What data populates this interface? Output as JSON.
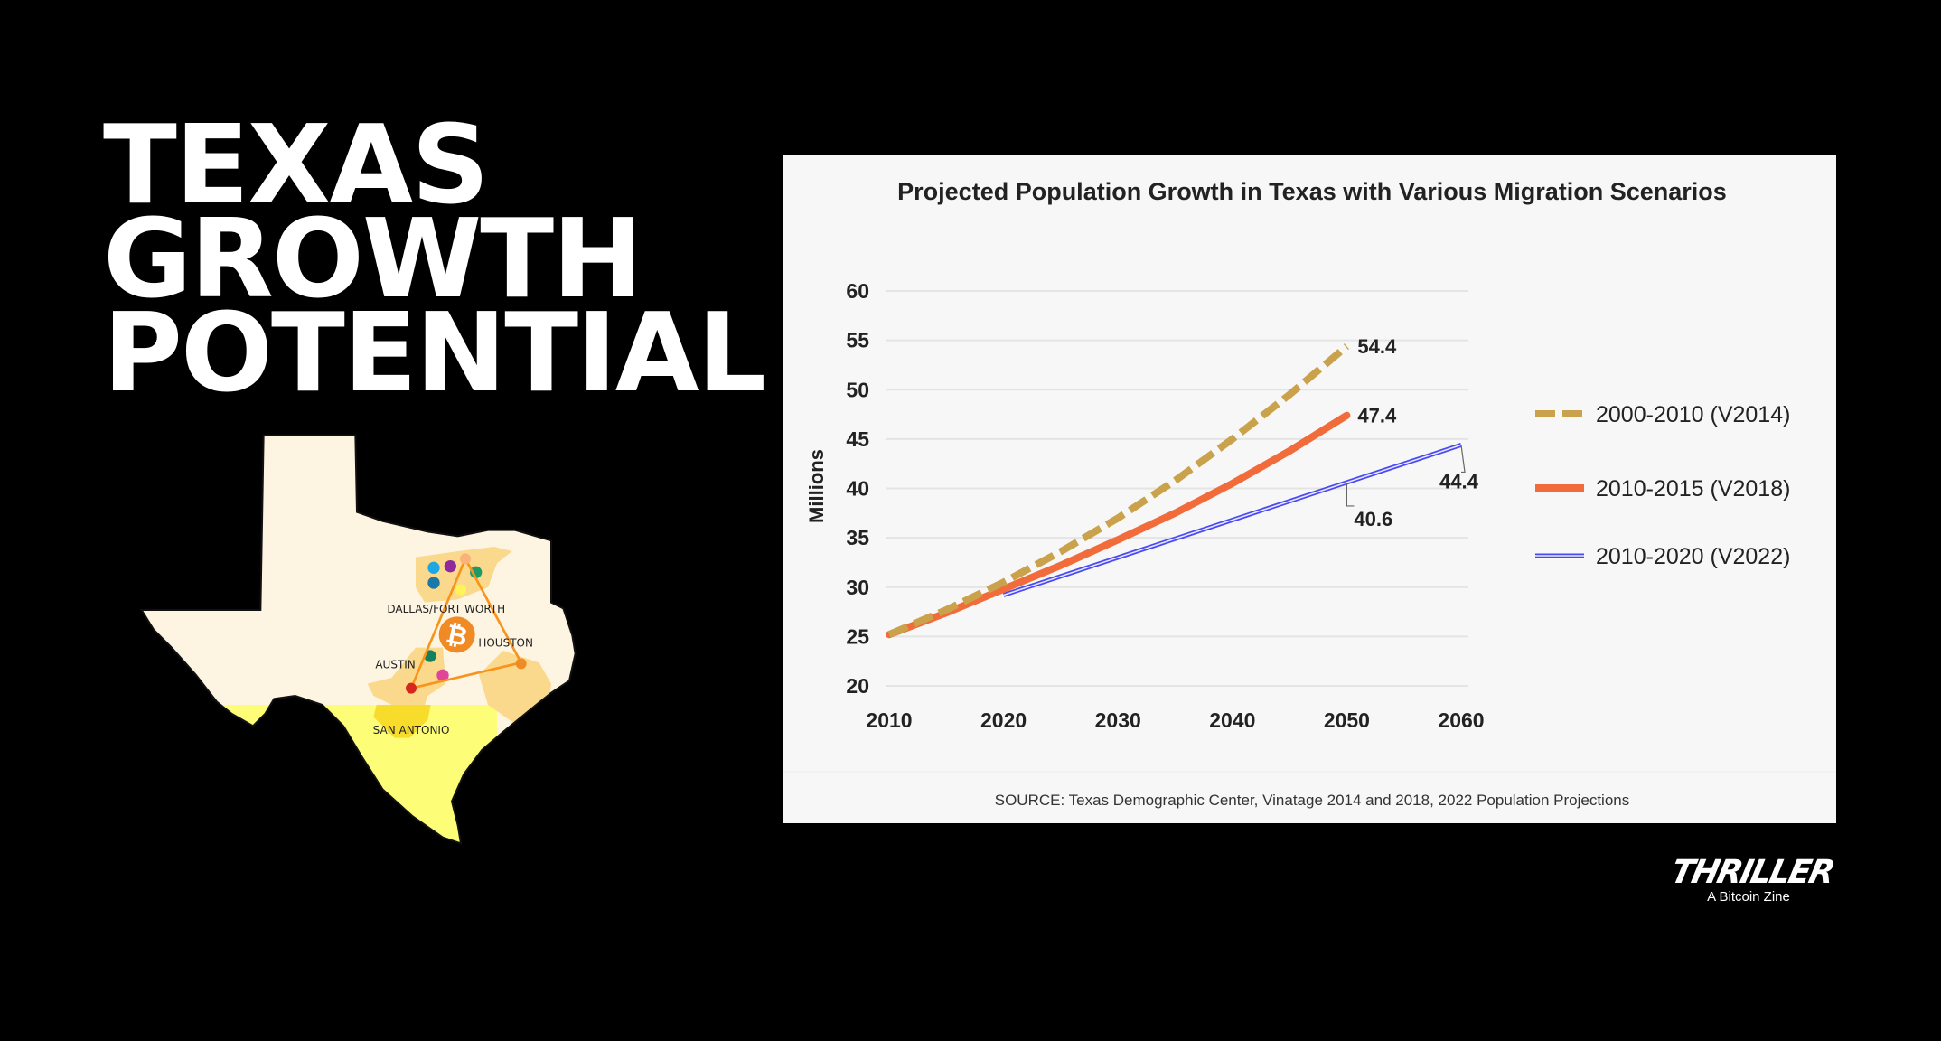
{
  "headline": [
    "TEXAS",
    "GROWTH",
    "POTENTIAL"
  ],
  "map": {
    "cities": [
      "DALLAS/FORT WORTH",
      "HOUSTON",
      "AUSTIN",
      "SAN ANTONIO"
    ],
    "center_icon": "bitcoin-icon",
    "colors": {
      "land": "#fdf5e2",
      "south": "#fdfd78",
      "metro": "#fbd98c",
      "triangle": "#f7941d"
    }
  },
  "chart_data": {
    "type": "line",
    "title": "Projected Population Growth in Texas with Various Migration Scenarios",
    "xlabel": "",
    "ylabel": "Millions",
    "x_ticks": [
      "2010",
      "2020",
      "2030",
      "2040",
      "2050",
      "2060"
    ],
    "y_ticks": [
      "20",
      "25",
      "30",
      "35",
      "40",
      "45",
      "50",
      "55",
      "60"
    ],
    "xlim": [
      2010,
      2060
    ],
    "ylim": [
      20,
      60
    ],
    "grid": true,
    "legend_position": "right",
    "series": [
      {
        "name": "2000-2010 (V2014)",
        "color": "#c9a24b",
        "style": "dashed",
        "x": [
          2010,
          2015,
          2020,
          2025,
          2030,
          2035,
          2040,
          2045,
          2050
        ],
        "y": [
          25.2,
          27.7,
          30.5,
          33.6,
          37.0,
          40.8,
          45.0,
          49.5,
          54.4
        ],
        "end_label": "54.4"
      },
      {
        "name": "2010-2015 (V2018)",
        "color": "#f26b3a",
        "style": "solid",
        "x": [
          2010,
          2015,
          2020,
          2025,
          2030,
          2035,
          2040,
          2045,
          2050
        ],
        "y": [
          25.2,
          27.4,
          29.8,
          32.2,
          34.8,
          37.5,
          40.5,
          43.8,
          47.4
        ],
        "end_label": "47.4"
      },
      {
        "name": "2010-2020 (V2022)",
        "color": "#4a4af0",
        "style": "double",
        "x": [
          2020,
          2050,
          2060
        ],
        "y": [
          29.2,
          40.6,
          44.4
        ],
        "point_labels": [
          {
            "x": 2050,
            "y": 40.6,
            "text": "40.6"
          },
          {
            "x": 2060,
            "y": 44.4,
            "text": "44.4"
          }
        ]
      }
    ],
    "source": "SOURCE: Texas Demographic Center, Vinatage 2014 and 2018, 2022 Population Projections"
  },
  "logo": {
    "brand": "THRILLER",
    "tagline": "A Bitcoin Zine"
  }
}
